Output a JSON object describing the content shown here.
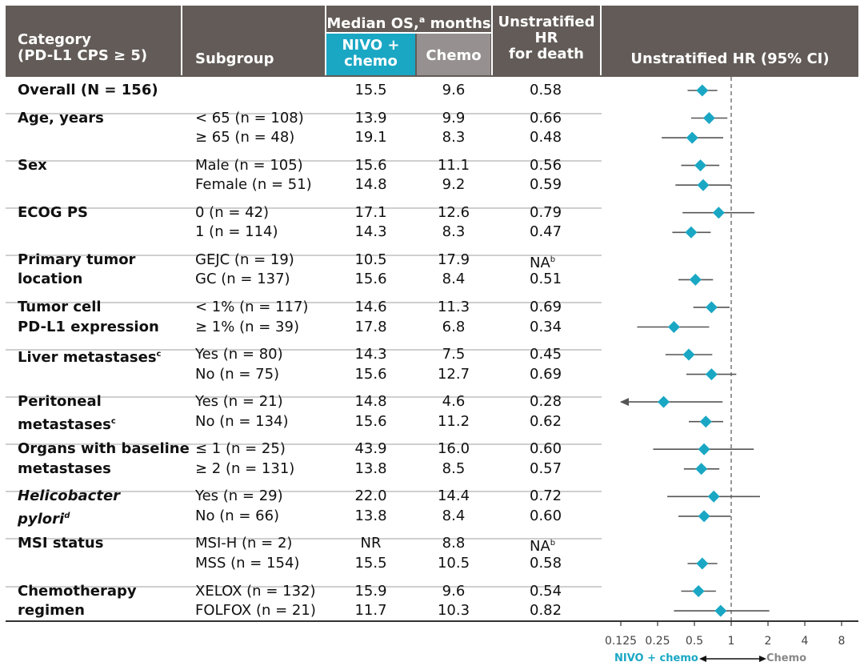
{
  "header": {
    "category_line1": "Category",
    "category_line2": "(PD-L1 CPS ≥ 5)",
    "subgroup": "Subgroup",
    "median_os": "Median OS,",
    "median_os_sup": "a",
    "median_os_unit": " months",
    "nivo_line1": "NIVO +",
    "nivo_line2": "chemo",
    "chemo": "Chemo",
    "hr_line1": "Unstratified",
    "hr_line2": "HR",
    "hr_line3": "for death",
    "forest_title": "Unstratified HR (95% CI)"
  },
  "colors": {
    "header_bg": "#625b57",
    "nivo": "#1aa7c4",
    "chemo": "#969190",
    "diamond": "#1aa7c4",
    "ci_line": "#555555"
  },
  "groups": [
    {
      "category": [
        "Overall (N = 156)"
      ],
      "rows": [
        {
          "subgroup": "",
          "nivo": "15.5",
          "chemo": "9.6",
          "hr": "0.58",
          "hr_sup": "",
          "ci": [
            0.44,
            0.77
          ]
        }
      ]
    },
    {
      "category": [
        "Age, years"
      ],
      "rows": [
        {
          "subgroup": "< 65 (n = 108)",
          "nivo": "13.9",
          "chemo": "9.9",
          "hr": "0.66",
          "hr_sup": "",
          "ci": [
            0.47,
            0.93
          ]
        },
        {
          "subgroup": "≥ 65 (n = 48)",
          "nivo": "19.1",
          "chemo": "8.3",
          "hr": "0.48",
          "hr_sup": "",
          "ci": [
            0.27,
            0.86
          ]
        }
      ]
    },
    {
      "category": [
        "Sex"
      ],
      "rows": [
        {
          "subgroup": "Male (n = 105)",
          "nivo": "15.6",
          "chemo": "11.1",
          "hr": "0.56",
          "hr_sup": "",
          "ci": [
            0.39,
            0.8
          ]
        },
        {
          "subgroup": "Female (n = 51)",
          "nivo": "14.8",
          "chemo": "9.2",
          "hr": "0.59",
          "hr_sup": "",
          "ci": [
            0.35,
            0.99
          ]
        }
      ]
    },
    {
      "category": [
        "ECOG PS"
      ],
      "rows": [
        {
          "subgroup": "0 (n = 42)",
          "nivo": "17.1",
          "chemo": "12.6",
          "hr": "0.79",
          "hr_sup": "",
          "ci": [
            0.4,
            1.55
          ]
        },
        {
          "subgroup": "1 (n = 114)",
          "nivo": "14.3",
          "chemo": "8.3",
          "hr": "0.47",
          "hr_sup": "",
          "ci": [
            0.33,
            0.68
          ]
        }
      ]
    },
    {
      "category": [
        "Primary tumor",
        "location"
      ],
      "rows": [
        {
          "subgroup": "GEJC (n = 19)",
          "nivo": "10.5",
          "chemo": "17.9",
          "hr": "NA",
          "hr_sup": "b",
          "ci": null
        },
        {
          "subgroup": "GC (n = 137)",
          "nivo": "15.6",
          "chemo": "8.4",
          "hr": "0.51",
          "hr_sup": "",
          "ci": [
            0.37,
            0.71
          ]
        }
      ]
    },
    {
      "category": [
        "Tumor cell",
        "PD-L1 expression"
      ],
      "rows": [
        {
          "subgroup": "< 1% (n = 117)",
          "nivo": "14.6",
          "chemo": "11.3",
          "hr": "0.69",
          "hr_sup": "",
          "ci": [
            0.49,
            0.97
          ]
        },
        {
          "subgroup": "≥ 1% (n = 39)",
          "nivo": "17.8",
          "chemo": "6.8",
          "hr": "0.34",
          "hr_sup": "",
          "ci": [
            0.17,
            0.66
          ]
        }
      ]
    },
    {
      "category": [
        "Liver metastases"
      ],
      "category_sup": "c",
      "rows": [
        {
          "subgroup": "Yes (n = 80)",
          "nivo": "14.3",
          "chemo": "7.5",
          "hr": "0.45",
          "hr_sup": "",
          "ci": [
            0.29,
            0.7
          ]
        },
        {
          "subgroup": "No (n = 75)",
          "nivo": "15.6",
          "chemo": "12.7",
          "hr": "0.69",
          "hr_sup": "",
          "ci": [
            0.43,
            1.1
          ]
        }
      ]
    },
    {
      "category": [
        "Peritoneal",
        "metastases"
      ],
      "category_sup": "c",
      "rows": [
        {
          "subgroup": "Yes (n = 21)",
          "nivo": "14.8",
          "chemo": "4.6",
          "hr": "0.28",
          "hr_sup": "",
          "ci": [
            0.125,
            0.85
          ],
          "arrow_low": true
        },
        {
          "subgroup": "No (n = 134)",
          "nivo": "15.6",
          "chemo": "11.2",
          "hr": "0.62",
          "hr_sup": "",
          "ci": [
            0.45,
            0.86
          ]
        }
      ]
    },
    {
      "category": [
        "Organs with baseline",
        "metastases"
      ],
      "rows": [
        {
          "subgroup": "≤ 1 (n = 25)",
          "nivo": "43.9",
          "chemo": "16.0",
          "hr": "0.60",
          "hr_sup": "",
          "ci": [
            0.23,
            1.53
          ]
        },
        {
          "subgroup": "≥ 2 (n = 131)",
          "nivo": "13.8",
          "chemo": "8.5",
          "hr": "0.57",
          "hr_sup": "",
          "ci": [
            0.41,
            0.8
          ]
        }
      ]
    },
    {
      "category": [
        "Helicobacter",
        "pylori"
      ],
      "category_sup": "d",
      "italic": true,
      "rows": [
        {
          "subgroup": "Yes (n = 29)",
          "nivo": "22.0",
          "chemo": "14.4",
          "hr": "0.72",
          "hr_sup": "",
          "ci": [
            0.3,
            1.72
          ]
        },
        {
          "subgroup": "No (n = 66)",
          "nivo": "13.8",
          "chemo": "8.4",
          "hr": "0.60",
          "hr_sup": "",
          "ci": [
            0.37,
            0.99
          ]
        }
      ]
    },
    {
      "category": [
        "MSI status"
      ],
      "rows": [
        {
          "subgroup": "MSI-H (n = 2)",
          "nivo": "NR",
          "chemo": "8.8",
          "hr": "NA",
          "hr_sup": "b",
          "ci": null
        },
        {
          "subgroup": "MSS (n = 154)",
          "nivo": "15.5",
          "chemo": "10.5",
          "hr": "0.58",
          "hr_sup": "",
          "ci": [
            0.44,
            0.77
          ]
        }
      ]
    },
    {
      "category": [
        "Chemotherapy",
        "regimen"
      ],
      "rows": [
        {
          "subgroup": "XELOX (n = 132)",
          "nivo": "15.9",
          "chemo": "9.6",
          "hr": "0.54",
          "hr_sup": "",
          "ci": [
            0.39,
            0.75
          ]
        },
        {
          "subgroup": "FOLFOX (n = 21)",
          "nivo": "11.7",
          "chemo": "10.3",
          "hr": "0.82",
          "hr_sup": "",
          "ci": [
            0.34,
            2.05
          ]
        }
      ]
    }
  ],
  "chart_data": {
    "type": "forest",
    "xscale": "log2",
    "xlim": [
      0.125,
      8
    ],
    "reference_line": 1,
    "xticks": [
      "0.125",
      "0.25",
      "0.5",
      "1",
      "2",
      "4",
      "8"
    ],
    "xtick_values": [
      0.125,
      0.25,
      0.5,
      1,
      2,
      4,
      8
    ],
    "favors_left": "NIVO + chemo",
    "favors_right": "Chemo"
  }
}
